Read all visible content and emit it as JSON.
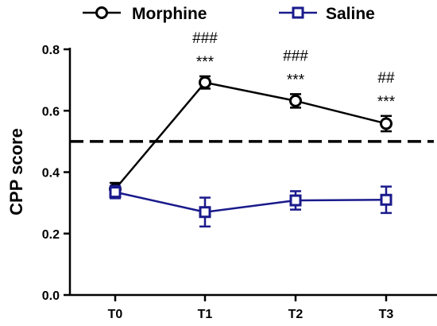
{
  "chart_data": {
    "type": "line",
    "categories": [
      "T0",
      "T1",
      "T2",
      "T3"
    ],
    "ylabel": "CPP score",
    "xlabel": "",
    "ylim": [
      0.0,
      0.8
    ],
    "yticks": [
      "0.0",
      "0.2",
      "0.4",
      "0.6",
      "0.8"
    ],
    "reference_line": {
      "value": 0.5,
      "style": "dashed"
    },
    "legend": {
      "placement": "top"
    },
    "series": [
      {
        "name": "Morphine",
        "marker": "circle",
        "color": "#000000",
        "values": [
          0.345,
          0.692,
          0.632,
          0.558
        ],
        "errors": [
          0.02,
          0.02,
          0.022,
          0.025
        ],
        "annotations": [
          {
            "category": "T1",
            "lines": [
              "###",
              "***"
            ]
          },
          {
            "category": "T2",
            "lines": [
              "###",
              "***"
            ]
          },
          {
            "category": "T3",
            "lines": [
              "##",
              "***"
            ]
          }
        ]
      },
      {
        "name": "Saline",
        "marker": "square",
        "color": "#1a1a8c",
        "values": [
          0.335,
          0.27,
          0.308,
          0.31
        ],
        "errors": [
          0.02,
          0.047,
          0.03,
          0.043
        ]
      }
    ]
  }
}
